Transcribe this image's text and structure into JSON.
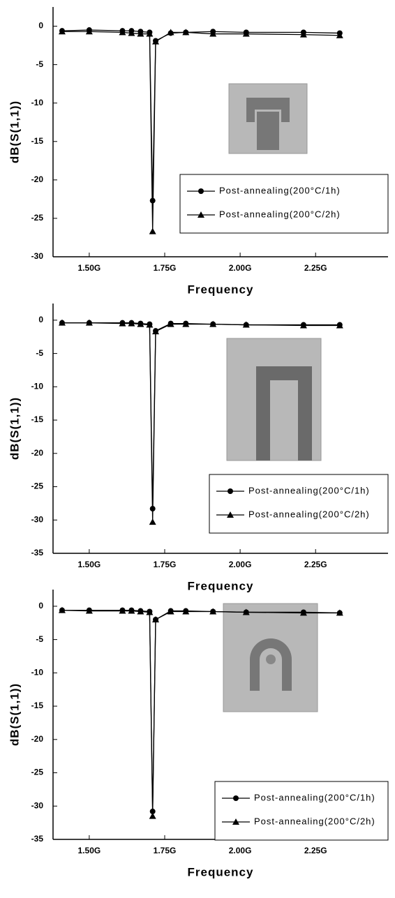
{
  "chart_data": [
    {
      "type": "line",
      "xlabel": "Frequency",
      "ylabel": "dB(S(1,1))",
      "x": [
        1.41,
        1.5,
        1.61,
        1.64,
        1.67,
        1.7,
        1.71,
        1.72,
        1.77,
        1.82,
        1.91,
        2.02,
        2.21,
        2.33
      ],
      "series": [
        {
          "name": "Post-annealing(200°C/1h)",
          "color": "#000000",
          "marker": "circle",
          "values": [
            -0.6,
            -0.5,
            -0.6,
            -0.6,
            -0.7,
            -0.8,
            -22.7,
            -1.9,
            -0.9,
            -0.8,
            -0.7,
            -0.8,
            -0.8,
            -0.9
          ]
        },
        {
          "name": "Post-annealing(200°C/2h)",
          "color": "#000000",
          "marker": "triangle",
          "values": [
            -0.7,
            -0.7,
            -0.8,
            -0.9,
            -1.0,
            -1.0,
            -26.7,
            -2.0,
            -0.8,
            -0.8,
            -1.0,
            -1.0,
            -1.1,
            -1.2
          ]
        }
      ],
      "xlim": [
        1.38,
        2.49
      ],
      "xticks": [
        {
          "value": 1.5,
          "label": "1.50G"
        },
        {
          "value": 1.75,
          "label": "1.75G"
        },
        {
          "value": 2.0,
          "label": "2.00G"
        },
        {
          "value": 2.25,
          "label": "2.25G"
        }
      ],
      "ylim": [
        -30,
        2.5
      ],
      "yticks": [
        0,
        -5,
        -10,
        -15,
        -20,
        -25,
        -30
      ],
      "legend": "lower right"
    },
    {
      "type": "line",
      "xlabel": "Frequency",
      "ylabel": "dB(S(1,1))",
      "x": [
        1.41,
        1.5,
        1.61,
        1.64,
        1.67,
        1.7,
        1.71,
        1.72,
        1.77,
        1.82,
        1.91,
        2.02,
        2.21,
        2.33
      ],
      "series": [
        {
          "name": "Post-annealing(200°C/1h)",
          "color": "#000000",
          "marker": "circle",
          "values": [
            -0.4,
            -0.4,
            -0.4,
            -0.4,
            -0.5,
            -0.6,
            -28.3,
            -1.6,
            -0.5,
            -0.5,
            -0.6,
            -0.7,
            -0.7,
            -0.7
          ]
        },
        {
          "name": "Post-annealing(200°C/2h)",
          "color": "#000000",
          "marker": "triangle",
          "values": [
            -0.4,
            -0.4,
            -0.5,
            -0.5,
            -0.6,
            -0.7,
            -30.3,
            -1.7,
            -0.6,
            -0.6,
            -0.6,
            -0.7,
            -0.8,
            -0.8
          ]
        }
      ],
      "xlim": [
        1.38,
        2.49
      ],
      "xticks": [
        {
          "value": 1.5,
          "label": "1.50G"
        },
        {
          "value": 1.75,
          "label": "1.75G"
        },
        {
          "value": 2.0,
          "label": "2.00G"
        },
        {
          "value": 2.25,
          "label": "2.25G"
        }
      ],
      "ylim": [
        -35,
        2.5
      ],
      "yticks": [
        0,
        -5,
        -10,
        -15,
        -20,
        -25,
        -30,
        -35
      ],
      "legend": "lower right"
    },
    {
      "type": "line",
      "xlabel": "Frequency",
      "ylabel": "dB(S(1,1))",
      "x": [
        1.41,
        1.5,
        1.61,
        1.64,
        1.67,
        1.7,
        1.71,
        1.72,
        1.77,
        1.82,
        1.91,
        2.02,
        2.21,
        2.33
      ],
      "series": [
        {
          "name": "Post-annealing(200°C/1h)",
          "color": "#000000",
          "marker": "circle",
          "values": [
            -0.6,
            -0.6,
            -0.6,
            -0.6,
            -0.7,
            -0.8,
            -30.8,
            -2.0,
            -0.7,
            -0.7,
            -0.8,
            -0.9,
            -0.9,
            -1.0
          ]
        },
        {
          "name": "Post-annealing(200°C/2h)",
          "color": "#000000",
          "marker": "triangle",
          "values": [
            -0.6,
            -0.7,
            -0.7,
            -0.7,
            -0.8,
            -0.9,
            -31.5,
            -2.0,
            -0.8,
            -0.8,
            -0.8,
            -0.9,
            -1.0,
            -1.0
          ]
        }
      ],
      "xlim": [
        1.38,
        2.49
      ],
      "xticks": [
        {
          "value": 1.5,
          "label": "1.50G"
        },
        {
          "value": 1.75,
          "label": "1.75G"
        },
        {
          "value": 2.0,
          "label": "2.00G"
        },
        {
          "value": 2.25,
          "label": "2.25G"
        }
      ],
      "ylim": [
        -35,
        2.5
      ],
      "yticks": [
        0,
        -5,
        -10,
        -15,
        -20,
        -25,
        -30,
        -35
      ],
      "legend": "lower right"
    }
  ]
}
